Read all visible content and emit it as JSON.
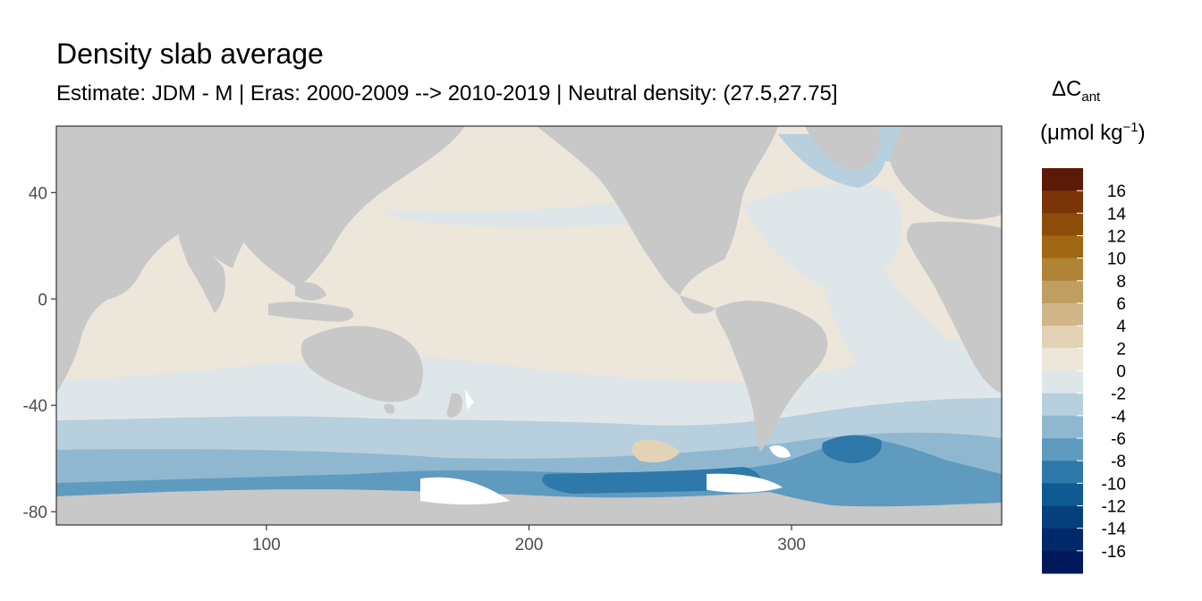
{
  "title": "Density slab average",
  "subtitle": "Estimate: JDM - M | Eras: 2000-2009 --> 2010-2019 | Neutral density: (27.5,27.75]",
  "legend": {
    "title_symbol": "ΔC",
    "title_subscript": "ant",
    "unit_prefix": "(μmol kg",
    "unit_exponent": "−1",
    "unit_suffix": ")",
    "labels": [
      "16",
      "14",
      "12",
      "10",
      "8",
      "6",
      "4",
      "2",
      "0",
      "-2",
      "-4",
      "-6",
      "-8",
      "-10",
      "-12",
      "-14",
      "-16"
    ],
    "colors": [
      "#5b1a08",
      "#7a3408",
      "#8e4c0a",
      "#a06812",
      "#b08436",
      "#c09e62",
      "#d0b688",
      "#e3d3b6",
      "#ece6db",
      "#dfe6ea",
      "#b8cfdd",
      "#8fb8d0",
      "#5f9bbf",
      "#2f78aa",
      "#105a92",
      "#05407d",
      "#022a6b",
      "#01185a"
    ]
  },
  "chart_data": {
    "type": "heatmap",
    "x_ticks": [
      "100",
      "200",
      "300"
    ],
    "y_ticks": [
      "40",
      "0",
      "-40",
      "-80"
    ],
    "x_values": [
      100,
      200,
      300
    ],
    "y_values": [
      40,
      0,
      -40,
      -80
    ],
    "xlim": [
      20,
      380
    ],
    "ylim": [
      -85,
      65
    ],
    "land_color": "#c8c8c8",
    "panel_border": "#333333"
  }
}
